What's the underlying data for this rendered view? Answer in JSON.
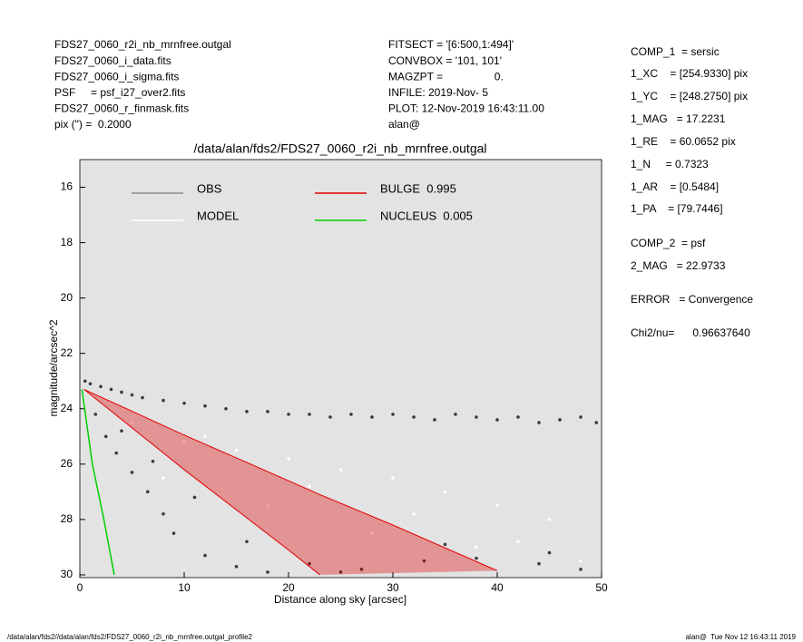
{
  "header": {
    "left": [
      "FDS27_0060_r2i_nb_mrnfree.outgal",
      "FDS27_0060_i_data.fits",
      "FDS27_0060_i_sigma.fits",
      "PSF     = psf_i27_over2.fits",
      "FDS27_0060_r_finmask.fits",
      "pix (\") =  0.2000"
    ],
    "middle": [
      "FITSECT = '[6:500,1:494]'",
      "CONVBOX = '101, 101'",
      "MAGZPT =                 0.",
      "INFILE: 2019-Nov- 5",
      "PLOT: 12-Nov-2019 16:43:11.00",
      "alan@"
    ]
  },
  "params": [
    "COMP_1  = sersic",
    "1_XC    = [254.9330] pix",
    "1_YC    = [248.2750] pix",
    "1_MAG   = 17.2231",
    "1_RE    = 60.0652 pix",
    "1_N     = 0.7323",
    "1_AR    = [0.5484]",
    "1_PA    = [79.7446]",
    "COMP_2  = psf",
    "2_MAG   = 22.9733",
    "ERROR   = Convergence",
    "Chi2/nu=      0.96637640"
  ],
  "footer": {
    "left": "/data/alan/fds2//data/alan/fds2/FDS27_0060_r2i_nb_mrnfree.outgal_profile2",
    "right": "alan@  Tue Nov 12 16:43:11 2019"
  },
  "chart_data": {
    "type": "scatter",
    "title": "/data/alan/fds2/FDS27_0060_r2i_nb_mrnfree.outgal",
    "x_label": "Distance along sky [arcsec]",
    "y_label": "magnitude/arcsec^2",
    "xlim": [
      0,
      50
    ],
    "ylim": [
      30.1,
      15
    ],
    "xticks": [
      0,
      10,
      20,
      30,
      40,
      50
    ],
    "yticks": [
      16,
      18,
      20,
      22,
      24,
      26,
      28,
      30
    ],
    "background": "#e3e3e3",
    "series": [
      {
        "name": "OBS",
        "color": "#8c8c8c",
        "point_color": "#3a3a3a",
        "mode": "markers",
        "x": [
          0.5,
          1,
          2,
          3,
          4,
          5,
          6,
          8,
          10,
          12,
          14,
          16,
          18,
          20,
          22,
          24,
          26,
          28,
          30,
          32,
          34,
          36,
          38,
          40,
          42,
          44,
          46,
          48,
          49.5,
          1.5,
          2.5,
          3.5,
          5,
          6.5,
          8,
          9,
          12,
          15,
          18,
          22,
          27,
          33,
          38,
          44,
          48,
          4,
          7,
          11,
          16,
          25,
          35,
          45
        ],
        "values": [
          23.0,
          23.1,
          23.2,
          23.3,
          23.4,
          23.5,
          23.6,
          23.7,
          23.8,
          23.9,
          24.0,
          24.1,
          24.1,
          24.2,
          24.2,
          24.3,
          24.2,
          24.3,
          24.2,
          24.3,
          24.4,
          24.2,
          24.3,
          24.4,
          24.3,
          24.5,
          24.4,
          24.3,
          24.5,
          24.2,
          25.0,
          25.6,
          26.3,
          27.0,
          27.8,
          28.5,
          29.3,
          29.7,
          29.9,
          29.6,
          29.8,
          29.5,
          29.4,
          29.6,
          29.8,
          24.8,
          25.9,
          27.2,
          28.8,
          29.9,
          28.9,
          29.2
        ]
      },
      {
        "name": "MODEL",
        "color": "#ffffff",
        "point_color": "#ffffff",
        "mode": "markers",
        "x": [
          5,
          10,
          15,
          20,
          25,
          30,
          35,
          40,
          45,
          8,
          18,
          28,
          38,
          48,
          12,
          22,
          32,
          42
        ],
        "values": [
          24.5,
          25.2,
          25.5,
          25.8,
          26.2,
          26.5,
          27,
          27.5,
          28,
          26.5,
          27.5,
          28.5,
          29,
          29.5,
          25,
          26.8,
          27.8,
          28.8
        ]
      },
      {
        "name": "BULGE  0.995",
        "color": "#e00000",
        "mode": "band",
        "x": [
          0.4,
          10,
          20,
          23,
          30,
          40
        ],
        "values": [
          23.3,
          24.95,
          26.6,
          27.1,
          28.2,
          29.85
        ],
        "values_low": [
          23.3,
          26.2,
          29.1,
          30,
          null,
          null
        ]
      },
      {
        "name": "NUCLEUS  0.005",
        "color": "#00d000",
        "mode": "lines",
        "x": [
          0.2,
          1.2,
          2.3,
          3.3
        ],
        "values": [
          23.3,
          26,
          28,
          30
        ]
      }
    ]
  }
}
